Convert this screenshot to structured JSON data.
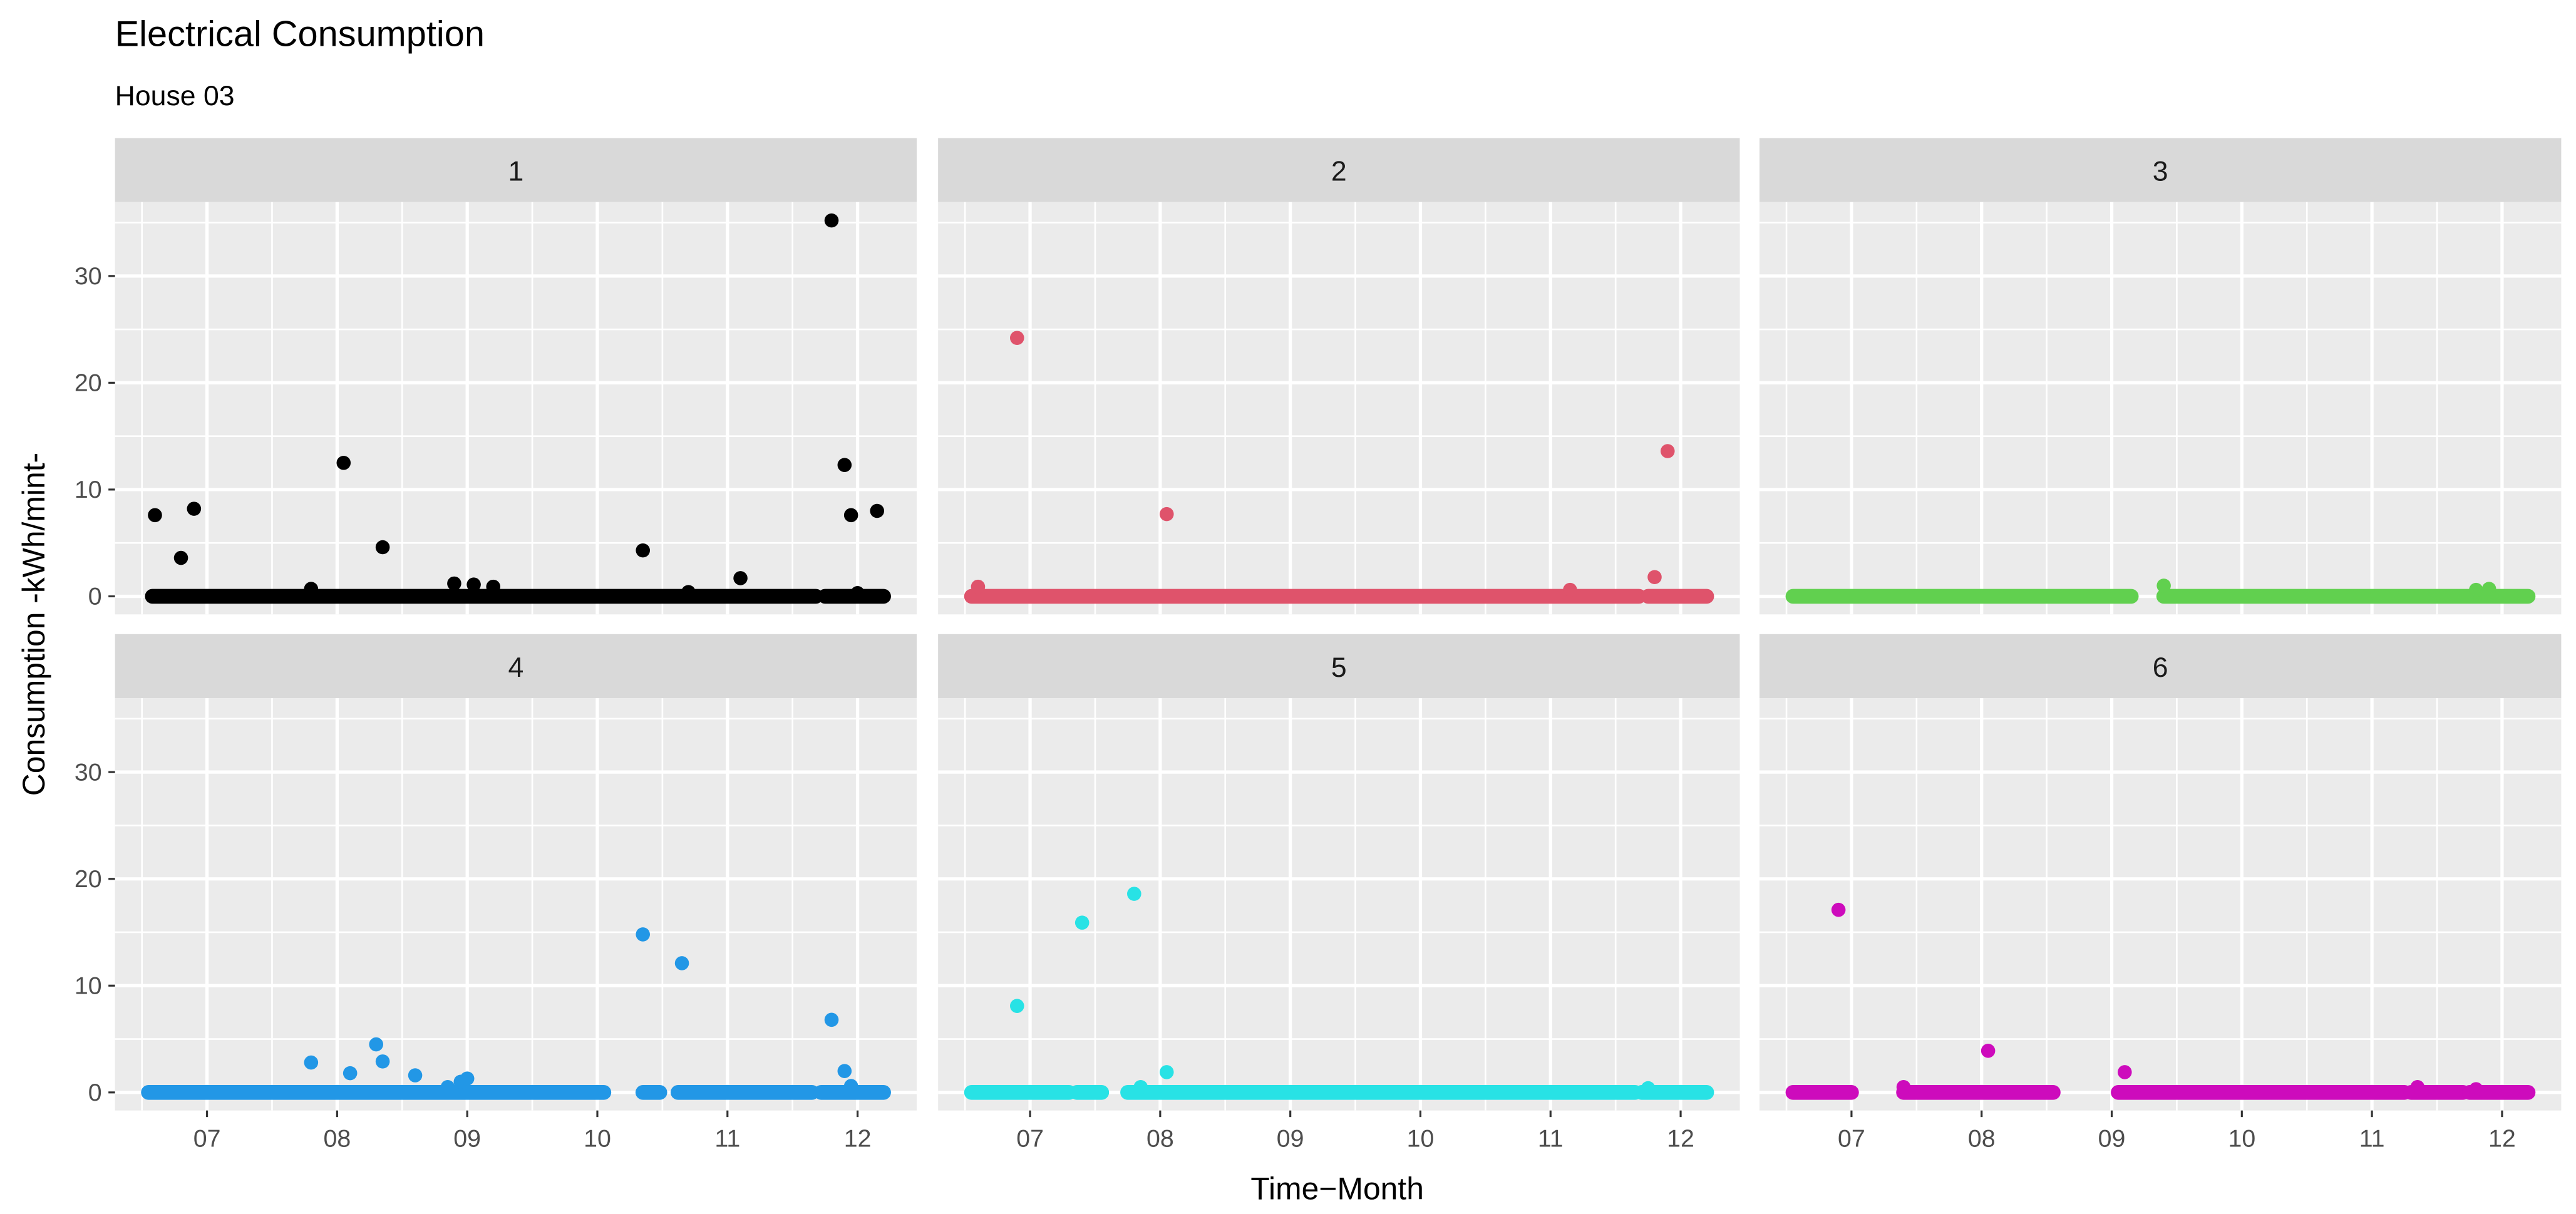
{
  "chart_data": {
    "type": "scatter",
    "title": "Electrical Consumption",
    "subtitle": "House 03",
    "xlabel": "Time−Month",
    "ylabel": "Consumption -kWh/mint-",
    "x_unit": "month number (fractional, 7.0 = start of July)",
    "xlim": [
      6.3,
      12.45
    ],
    "ylim": [
      -1.7,
      37
    ],
    "x_ticks": [
      7,
      8,
      9,
      10,
      11,
      12
    ],
    "x_tick_labels": [
      "07",
      "08",
      "09",
      "10",
      "11",
      "12"
    ],
    "y_ticks": [
      0,
      10,
      20,
      30
    ],
    "y_tick_labels": [
      "0",
      "10",
      "20",
      "30"
    ],
    "grid": true,
    "facets": [
      {
        "label": "1",
        "color": "#000000",
        "baseline_segments": [
          [
            6.58,
            11.68
          ],
          [
            11.75,
            12.2
          ]
        ],
        "points": [
          [
            6.6,
            7.6
          ],
          [
            6.8,
            3.6
          ],
          [
            6.9,
            8.2
          ],
          [
            7.8,
            0.7
          ],
          [
            8.05,
            12.5
          ],
          [
            8.35,
            4.6
          ],
          [
            8.9,
            1.2
          ],
          [
            9.05,
            1.1
          ],
          [
            9.2,
            0.9
          ],
          [
            10.35,
            4.3
          ],
          [
            10.7,
            0.4
          ],
          [
            11.1,
            1.7
          ],
          [
            11.8,
            35.2
          ],
          [
            11.9,
            12.3
          ],
          [
            11.95,
            7.6
          ],
          [
            12.0,
            0.3
          ],
          [
            12.15,
            8.0
          ]
        ]
      },
      {
        "label": "2",
        "color": "#DF536B",
        "baseline_segments": [
          [
            6.55,
            11.68
          ],
          [
            11.75,
            12.2
          ]
        ],
        "points": [
          [
            6.6,
            0.9
          ],
          [
            6.9,
            24.2
          ],
          [
            8.05,
            7.7
          ],
          [
            11.15,
            0.6
          ],
          [
            11.8,
            1.8
          ],
          [
            11.9,
            13.6
          ]
        ]
      },
      {
        "label": "3",
        "color": "#61D04F",
        "baseline_segments": [
          [
            6.55,
            9.15
          ],
          [
            9.4,
            12.2
          ]
        ],
        "points": [
          [
            9.4,
            1.0
          ],
          [
            11.8,
            0.6
          ],
          [
            11.9,
            0.7
          ]
        ]
      },
      {
        "label": "4",
        "color": "#2297E6",
        "baseline_segments": [
          [
            6.55,
            10.05
          ],
          [
            10.35,
            10.48
          ],
          [
            10.62,
            11.65
          ],
          [
            11.72,
            12.2
          ]
        ],
        "points": [
          [
            7.8,
            2.8
          ],
          [
            8.1,
            1.8
          ],
          [
            8.3,
            4.5
          ],
          [
            8.35,
            2.9
          ],
          [
            8.6,
            1.6
          ],
          [
            8.85,
            0.5
          ],
          [
            8.95,
            1.0
          ],
          [
            9.0,
            1.3
          ],
          [
            10.35,
            14.8
          ],
          [
            10.65,
            12.1
          ],
          [
            11.8,
            6.8
          ],
          [
            11.9,
            2.0
          ],
          [
            11.95,
            0.6
          ]
        ]
      },
      {
        "label": "5",
        "color": "#28E2E5",
        "baseline_segments": [
          [
            6.55,
            7.3
          ],
          [
            7.36,
            7.55
          ],
          [
            7.75,
            11.65
          ],
          [
            11.7,
            12.2
          ]
        ],
        "points": [
          [
            6.9,
            8.1
          ],
          [
            7.4,
            15.9
          ],
          [
            7.8,
            18.6
          ],
          [
            7.85,
            0.5
          ],
          [
            8.05,
            1.9
          ],
          [
            11.75,
            0.4
          ]
        ]
      },
      {
        "label": "6",
        "color": "#CD0BBC",
        "baseline_segments": [
          [
            6.55,
            7.0
          ],
          [
            7.4,
            8.55
          ],
          [
            9.05,
            11.25
          ],
          [
            11.3,
            11.7
          ],
          [
            11.75,
            12.2
          ]
        ],
        "points": [
          [
            6.9,
            17.1
          ],
          [
            7.4,
            0.5
          ],
          [
            8.05,
            3.9
          ],
          [
            9.1,
            1.9
          ],
          [
            11.35,
            0.5
          ],
          [
            11.8,
            0.3
          ]
        ]
      }
    ]
  }
}
